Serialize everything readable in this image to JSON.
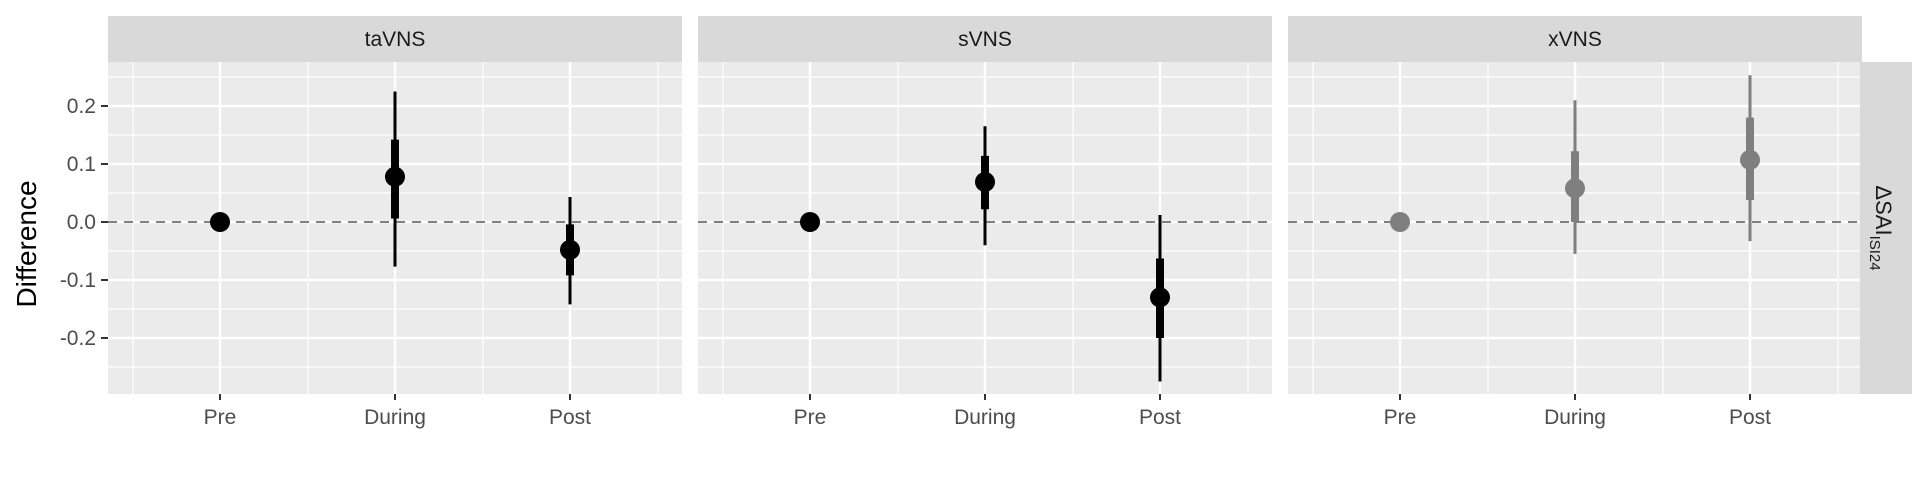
{
  "chart_data": {
    "type": "scatter",
    "ylabel": "Difference",
    "row_strip": {
      "main": "ΔSAI",
      "sub": "ISI24"
    },
    "categories": [
      "Pre",
      "During",
      "Post"
    ],
    "y_ticks": [
      0.2,
      0.1,
      0.0,
      -0.1,
      -0.2
    ],
    "y_tick_labels": [
      "0.2",
      "0.1",
      "0.0",
      "-0.1",
      "-0.2"
    ],
    "ylim": [
      -0.3,
      0.28
    ],
    "reference_line": 0.0,
    "grid": true,
    "point_color": "#000000",
    "faded_color": "#7f7f7f",
    "panels": [
      {
        "title": "taVNS",
        "faded": false,
        "points": [
          {
            "x": "Pre",
            "y": 0.0,
            "inner": [
              0.0,
              0.0
            ],
            "outer": [
              0.0,
              0.0
            ]
          },
          {
            "x": "During",
            "y": 0.078,
            "inner": [
              0.006,
              0.142
            ],
            "outer": [
              -0.077,
              0.225
            ]
          },
          {
            "x": "Post",
            "y": -0.048,
            "inner": [
              -0.092,
              -0.004
            ],
            "outer": [
              -0.142,
              0.043
            ]
          }
        ]
      },
      {
        "title": "sVNS",
        "faded": false,
        "points": [
          {
            "x": "Pre",
            "y": 0.0,
            "inner": [
              0.0,
              0.0
            ],
            "outer": [
              0.0,
              0.0
            ]
          },
          {
            "x": "During",
            "y": 0.069,
            "inner": [
              0.022,
              0.114
            ],
            "outer": [
              -0.04,
              0.165
            ]
          },
          {
            "x": "Post",
            "y": -0.13,
            "inner": [
              -0.2,
              -0.063
            ],
            "outer": [
              -0.275,
              0.012
            ]
          }
        ]
      },
      {
        "title": "xVNS",
        "faded": true,
        "points": [
          {
            "x": "Pre",
            "y": 0.0,
            "inner": [
              0.0,
              0.0
            ],
            "outer": [
              0.0,
              0.0
            ]
          },
          {
            "x": "During",
            "y": 0.058,
            "inner": [
              0.0,
              0.122
            ],
            "outer": [
              -0.055,
              0.21
            ]
          },
          {
            "x": "Post",
            "y": 0.107,
            "inner": [
              0.038,
              0.18
            ],
            "outer": [
              -0.033,
              0.253
            ]
          }
        ]
      }
    ]
  }
}
